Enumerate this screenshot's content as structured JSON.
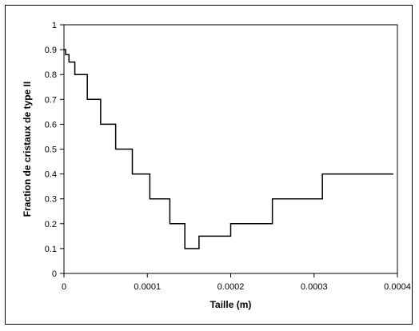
{
  "chart_data": {
    "type": "line",
    "title": "",
    "xlabel": "Taille (m)",
    "ylabel": "Fraction de cristaux de type II",
    "xlim": [
      0,
      0.0004
    ],
    "ylim": [
      0,
      1
    ],
    "x_ticks": [
      0,
      0.0001,
      0.0002,
      0.0003,
      0.0004
    ],
    "x_tick_labels": [
      "0",
      "0.0001",
      "0.0002",
      "0.0003",
      "0.0004"
    ],
    "y_ticks": [
      0,
      0.1,
      0.2,
      0.3,
      0.4,
      0.5,
      0.6,
      0.7,
      0.8,
      0.9,
      1
    ],
    "y_tick_labels": [
      "0",
      "0.1",
      "0.2",
      "0.3",
      "0.4",
      "0.5",
      "0.6",
      "0.7",
      "0.8",
      "0.9",
      "1"
    ],
    "grid": false,
    "legend": "none",
    "line_color": "#000000",
    "series": [
      {
        "x": [
          0,
          2e-06,
          2e-06,
          6e-06,
          6e-06,
          1.3e-05,
          1.3e-05,
          2.8e-05,
          2.8e-05,
          4.4e-05,
          4.4e-05,
          6.2e-05,
          6.2e-05,
          8.2e-05,
          8.2e-05,
          0.000103,
          0.000103,
          0.000127,
          0.000127,
          0.000145,
          0.000145,
          0.000162,
          0.000162,
          0.0002,
          0.0002,
          0.00025,
          0.00025,
          0.00031,
          0.00031,
          0.000395
        ],
        "y": [
          0.9,
          0.9,
          0.88,
          0.88,
          0.85,
          0.85,
          0.8,
          0.8,
          0.7,
          0.7,
          0.6,
          0.6,
          0.5,
          0.5,
          0.4,
          0.4,
          0.3,
          0.3,
          0.2,
          0.2,
          0.1,
          0.1,
          0.15,
          0.15,
          0.2,
          0.2,
          0.3,
          0.3,
          0.4,
          0.4
        ]
      }
    ]
  }
}
